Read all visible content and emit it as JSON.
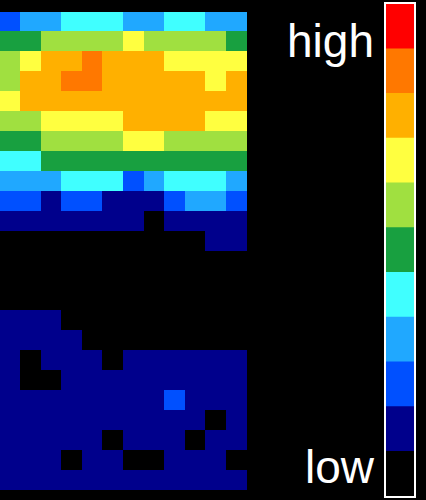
{
  "chart_data": {
    "type": "heatmap",
    "tick_labels": false,
    "cells": [
      [
        2,
        3,
        3,
        4,
        4,
        4,
        3,
        3,
        4,
        4,
        3,
        3
      ],
      [
        5,
        5,
        6,
        6,
        6,
        6,
        7,
        6,
        6,
        6,
        6,
        5
      ],
      [
        6,
        7,
        8,
        8,
        9,
        8,
        8,
        8,
        7,
        7,
        7,
        7
      ],
      [
        6,
        8,
        8,
        9,
        9,
        8,
        8,
        8,
        8,
        8,
        7,
        8
      ],
      [
        7,
        8,
        8,
        8,
        8,
        8,
        8,
        8,
        8,
        8,
        8,
        8
      ],
      [
        6,
        6,
        7,
        7,
        7,
        7,
        8,
        8,
        8,
        8,
        7,
        7
      ],
      [
        5,
        5,
        6,
        6,
        6,
        6,
        7,
        7,
        6,
        6,
        6,
        6
      ],
      [
        4,
        4,
        5,
        5,
        5,
        5,
        5,
        5,
        5,
        5,
        5,
        5
      ],
      [
        3,
        3,
        3,
        4,
        4,
        4,
        2,
        3,
        4,
        4,
        4,
        3
      ],
      [
        2,
        2,
        1,
        2,
        2,
        1,
        1,
        1,
        2,
        3,
        3,
        2
      ],
      [
        1,
        1,
        1,
        1,
        1,
        1,
        1,
        0,
        1,
        1,
        1,
        1
      ],
      [
        0,
        0,
        0,
        0,
        0,
        0,
        0,
        0,
        0,
        0,
        1,
        1
      ],
      [
        0,
        0,
        0,
        0,
        0,
        0,
        0,
        0,
        0,
        0,
        0,
        0
      ],
      [
        0,
        0,
        0,
        0,
        0,
        0,
        0,
        0,
        0,
        0,
        0,
        0
      ],
      [
        0,
        0,
        0,
        0,
        0,
        0,
        0,
        0,
        0,
        0,
        0,
        0
      ],
      [
        1,
        1,
        1,
        0,
        0,
        0,
        0,
        0,
        0,
        0,
        0,
        0
      ],
      [
        1,
        1,
        1,
        1,
        0,
        0,
        0,
        0,
        0,
        0,
        0,
        0
      ],
      [
        1,
        0,
        1,
        1,
        1,
        0,
        1,
        1,
        1,
        1,
        1,
        1
      ],
      [
        1,
        0,
        0,
        1,
        1,
        1,
        1,
        1,
        1,
        1,
        1,
        1
      ],
      [
        1,
        1,
        1,
        1,
        1,
        1,
        1,
        1,
        2,
        1,
        1,
        1
      ],
      [
        1,
        1,
        1,
        1,
        1,
        1,
        1,
        1,
        1,
        1,
        0,
        1
      ],
      [
        1,
        1,
        1,
        1,
        1,
        0,
        1,
        1,
        1,
        0,
        1,
        1
      ],
      [
        1,
        1,
        1,
        0,
        1,
        1,
        0,
        0,
        1,
        1,
        1,
        0
      ],
      [
        1,
        1,
        1,
        1,
        1,
        1,
        1,
        1,
        1,
        1,
        1,
        1
      ]
    ],
    "colorbar": {
      "clim": [
        0,
        10
      ],
      "colors": [
        "#000000",
        "#00008c",
        "#0050ff",
        "#20a8ff",
        "#40ffff",
        "#18a040",
        "#a0e040",
        "#ffff40",
        "#ffb000",
        "#ff7800",
        "#ff0000"
      ],
      "labels": {
        "high": "high",
        "low": "low"
      }
    }
  }
}
